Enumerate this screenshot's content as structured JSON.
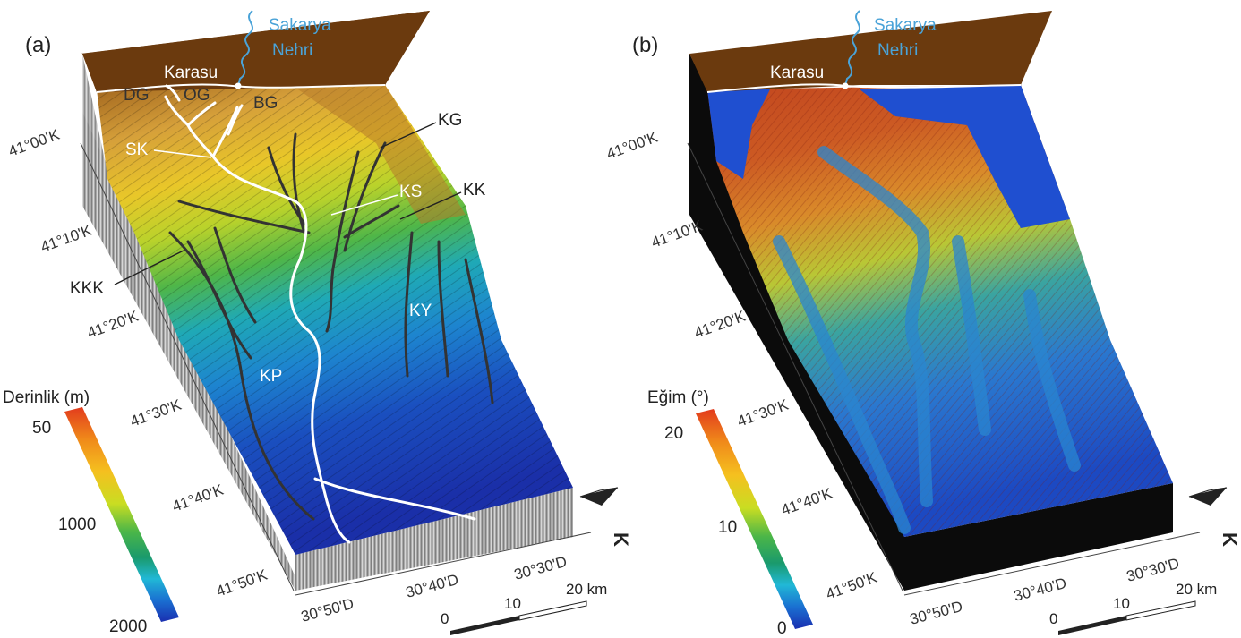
{
  "panels": [
    {
      "id": "a",
      "label": "(a)",
      "colorbar": {
        "title": "Derinlik (m)",
        "ticks": [
          "50",
          "1000",
          "2000"
        ]
      },
      "latitude_labels": [
        "41°00'K",
        "41°10'K",
        "41°20'K",
        "41°30'K",
        "41°40'K",
        "41°50'K"
      ],
      "longitude_labels": [
        "30°50'D",
        "30°40'D",
        "30°30'D"
      ],
      "scale_bar": {
        "ticks": [
          "0",
          "10",
          "20 km"
        ]
      },
      "north_label": "K",
      "land_labels": {
        "river": [
          "Sakarya",
          "Nehri"
        ],
        "town": "Karasu"
      },
      "feature_labels": [
        "DG",
        "OG",
        "BG",
        "SK",
        "KG",
        "KS",
        "KK",
        "KKK",
        "KY",
        "KP"
      ]
    },
    {
      "id": "b",
      "label": "(b)",
      "colorbar": {
        "title": "Eğim (°)",
        "ticks": [
          "20",
          "10",
          "0"
        ]
      },
      "latitude_labels": [
        "41°00'K",
        "41°10'K",
        "41°20'K",
        "41°30'K",
        "41°40'K",
        "41°50'K"
      ],
      "longitude_labels": [
        "30°50'D",
        "30°40'D",
        "30°30'D"
      ],
      "scale_bar": {
        "ticks": [
          "0",
          "10",
          "20 km"
        ]
      },
      "north_label": "K",
      "land_labels": {
        "river": [
          "Sakarya",
          "Nehri"
        ],
        "town": "Karasu"
      }
    }
  ],
  "colors": {
    "land": "#6b3a0e",
    "side_wall_a": "#9a9a9a",
    "side_wall_b": "#0b0b0b",
    "river": "#4aa3d8",
    "channel_main": "#ffffff",
    "channel_secondary": "#333333",
    "depth_ramp": [
      "#e23b1d",
      "#f08a1a",
      "#f5c01f",
      "#d9e21f",
      "#6cc13a",
      "#1a9a6c",
      "#21b8d6",
      "#1a6fd1",
      "#1a2fb0"
    ],
    "slope_ramp": [
      "#1a2fb0",
      "#1a6fd1",
      "#21b8d6",
      "#1a9a6c",
      "#6cc13a",
      "#d9e21f",
      "#f5c01f",
      "#f08a1a",
      "#e23b1d"
    ]
  }
}
